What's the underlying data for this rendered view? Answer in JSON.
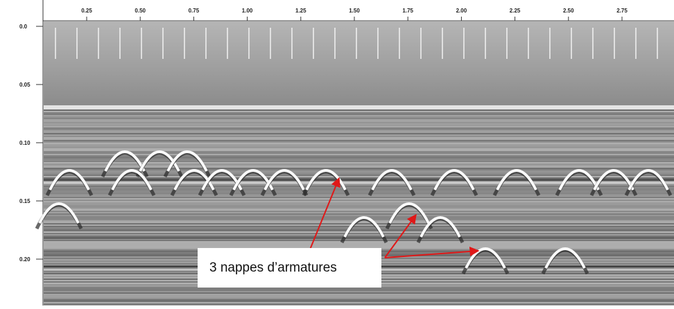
{
  "axes": {
    "top_labels": [
      "0.25",
      "0.50",
      "0.75",
      "1.00",
      "1.25",
      "1.50",
      "1.75",
      "2.00",
      "2.25",
      "2.50",
      "2.75"
    ],
    "left_labels": [
      "0.0",
      "0.05",
      "0.10",
      "0.15",
      "0.20"
    ]
  },
  "annotation": "3 nappes d’armatures"
}
